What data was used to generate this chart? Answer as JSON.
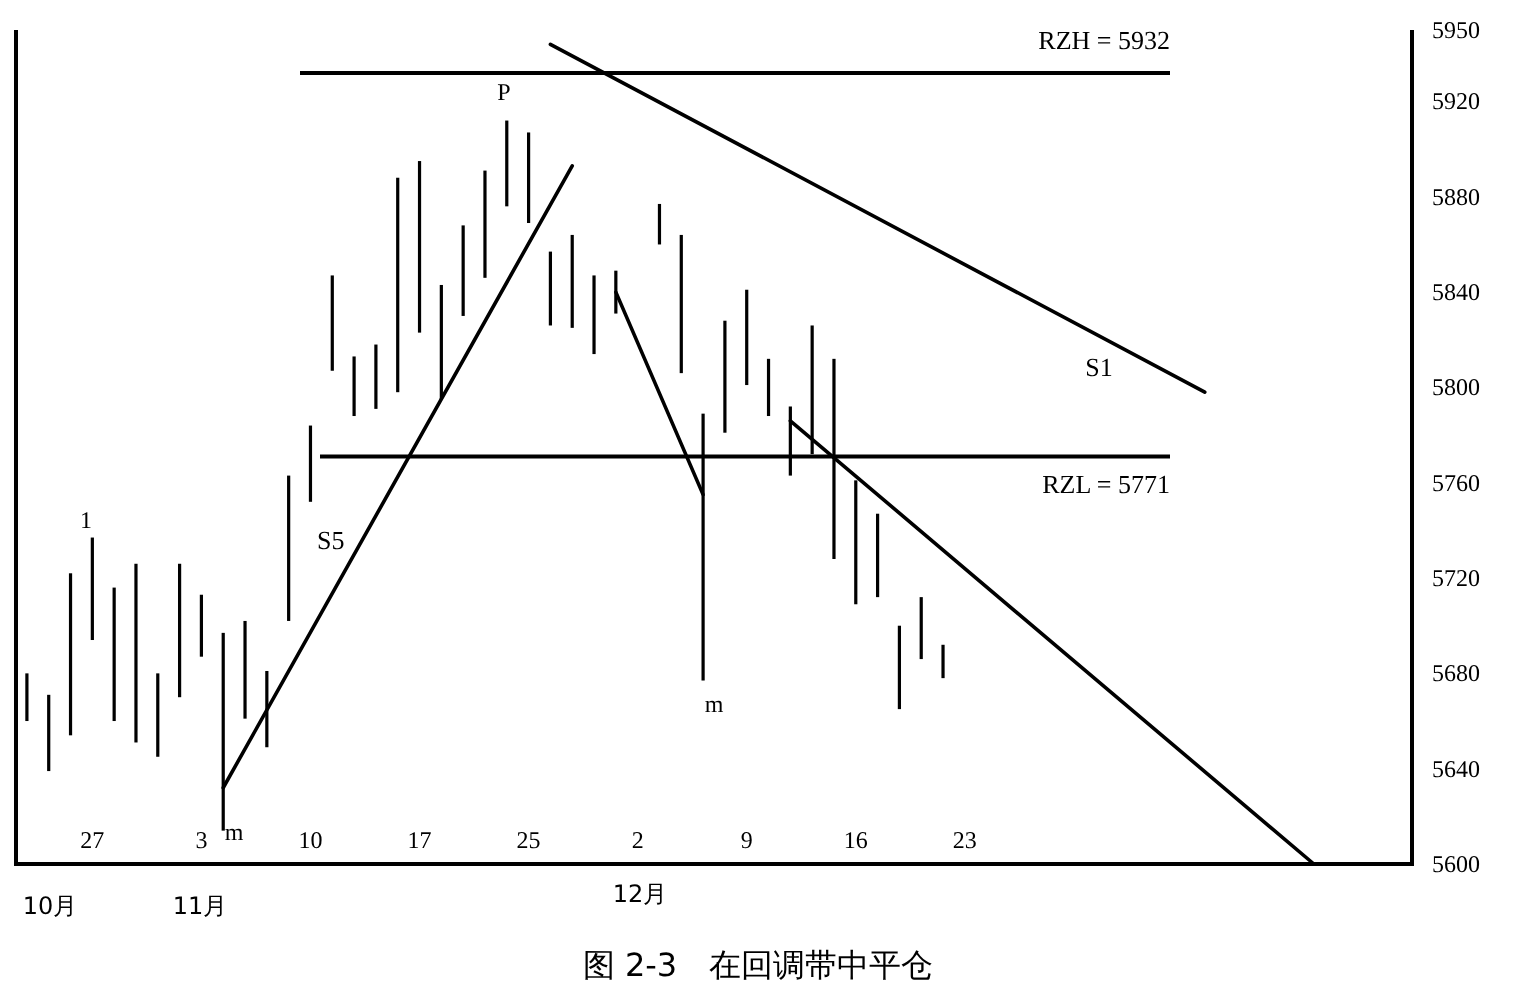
{
  "chart_data": {
    "type": "bar",
    "title": "图 2-3　在回调带中平仓",
    "categories": [
      null,
      null,
      null,
      "27",
      null,
      null,
      null,
      null,
      "3",
      null,
      null,
      null,
      null,
      "10",
      null,
      null,
      null,
      null,
      "17",
      null,
      null,
      null,
      null,
      "25",
      null,
      null,
      null,
      null,
      "2",
      null,
      null,
      null,
      null,
      "9",
      null,
      null,
      null,
      null,
      "16",
      null,
      null,
      null,
      null,
      "23",
      null,
      null,
      null,
      null,
      null,
      null,
      null,
      null,
      null,
      null,
      null,
      null,
      null,
      null,
      null,
      null,
      null,
      null,
      null,
      null
    ],
    "ylim": [
      5600,
      5950
    ],
    "yticks": [
      5600,
      5640,
      5680,
      5720,
      5760,
      5800,
      5840,
      5880,
      5920,
      5950
    ],
    "ref_lines": [
      {
        "axis": "y",
        "value": 5932,
        "label": "RZH = 5932",
        "color": "#000000"
      },
      {
        "axis": "y",
        "value": 5771,
        "label": "RZL = 5771",
        "color": "#000000"
      }
    ],
    "series": [
      {
        "color": "#000000",
        "base": [
          5660,
          5639,
          5654,
          5694,
          5660,
          5651,
          5645,
          5670,
          5687,
          5614,
          5661,
          5649,
          5702,
          5752,
          5807,
          5788,
          5791,
          5798,
          5823,
          5795,
          5830,
          5846,
          5876,
          5869,
          5826,
          5825,
          5814,
          5831,
          null,
          5860,
          5806,
          5677,
          5781,
          5801,
          5788,
          5763,
          5772,
          5728,
          5709,
          5712,
          5665,
          5686,
          5678,
          null,
          null,
          null,
          null,
          null,
          null,
          null,
          null,
          null,
          null,
          null,
          null,
          null,
          null,
          null,
          null,
          null,
          null,
          null,
          null,
          null
        ],
        "values": [
          20,
          32,
          68,
          43,
          56,
          75,
          35,
          56,
          26,
          83,
          41,
          32,
          61,
          32,
          40,
          25,
          27,
          90,
          72,
          48,
          38,
          45,
          36,
          38,
          31,
          39,
          33,
          18,
          null,
          17,
          58,
          112,
          47,
          40,
          24,
          29,
          54,
          84,
          52,
          35,
          35,
          26,
          14,
          null,
          null,
          null,
          null,
          null,
          null,
          null,
          null,
          null,
          null,
          null,
          null,
          null,
          null,
          null,
          null,
          null,
          null,
          null,
          null,
          null
        ]
      },
      {
        "type": "line",
        "name": "S5",
        "color": "#000000",
        "values": [
          null,
          null,
          null,
          null,
          null,
          null,
          null,
          null,
          null,
          5632,
          null,
          null,
          null,
          null,
          null,
          null,
          null,
          null,
          null,
          null,
          null,
          null,
          null,
          null,
          null,
          5893,
          null,
          null,
          null,
          null,
          null,
          null,
          null,
          null,
          null,
          null,
          null,
          null,
          null,
          null,
          null,
          null,
          null,
          null,
          null,
          null,
          null,
          null,
          null,
          null,
          null,
          null,
          null,
          null,
          null,
          null,
          null,
          null,
          null,
          null,
          null,
          null,
          null,
          null
        ]
      },
      {
        "type": "line",
        "name": "S1",
        "color": "#000000",
        "values": [
          null,
          null,
          null,
          null,
          null,
          null,
          null,
          null,
          null,
          null,
          null,
          null,
          null,
          null,
          null,
          null,
          null,
          null,
          null,
          null,
          null,
          null,
          null,
          null,
          5944,
          null,
          null,
          null,
          null,
          null,
          null,
          null,
          null,
          null,
          null,
          null,
          null,
          null,
          null,
          null,
          null,
          null,
          null,
          null,
          null,
          null,
          null,
          null,
          null,
          null,
          null,
          null,
          null,
          null,
          5798,
          null,
          null,
          null,
          null,
          null,
          null,
          null,
          null,
          null
        ]
      },
      {
        "type": "line",
        "color": "#000000",
        "values": [
          null,
          null,
          null,
          null,
          null,
          null,
          null,
          null,
          null,
          null,
          null,
          null,
          null,
          null,
          null,
          null,
          null,
          null,
          null,
          null,
          null,
          null,
          null,
          null,
          null,
          null,
          null,
          5840,
          null,
          null,
          null,
          5755,
          null,
          null,
          null,
          null,
          null,
          null,
          null,
          null,
          null,
          null,
          null,
          null,
          null,
          null,
          null,
          null,
          null,
          null,
          null,
          null,
          null,
          null,
          null,
          null,
          null,
          null,
          null,
          null,
          null,
          null,
          null,
          null
        ]
      },
      {
        "type": "line",
        "color": "#000000",
        "values": [
          null,
          null,
          null,
          null,
          null,
          null,
          null,
          null,
          null,
          null,
          null,
          null,
          null,
          null,
          null,
          null,
          null,
          null,
          null,
          null,
          null,
          null,
          null,
          null,
          null,
          null,
          null,
          null,
          null,
          null,
          null,
          null,
          null,
          null,
          null,
          5786,
          null,
          null,
          null,
          null,
          null,
          null,
          null,
          null,
          null,
          null,
          null,
          null,
          null,
          null,
          null,
          null,
          null,
          null,
          null,
          null,
          null,
          null,
          null,
          5600,
          null,
          null,
          null,
          null
        ]
      }
    ],
    "annotations": [
      "1",
      "m",
      "P",
      "m",
      "10月",
      "11月",
      "12月"
    ]
  }
}
